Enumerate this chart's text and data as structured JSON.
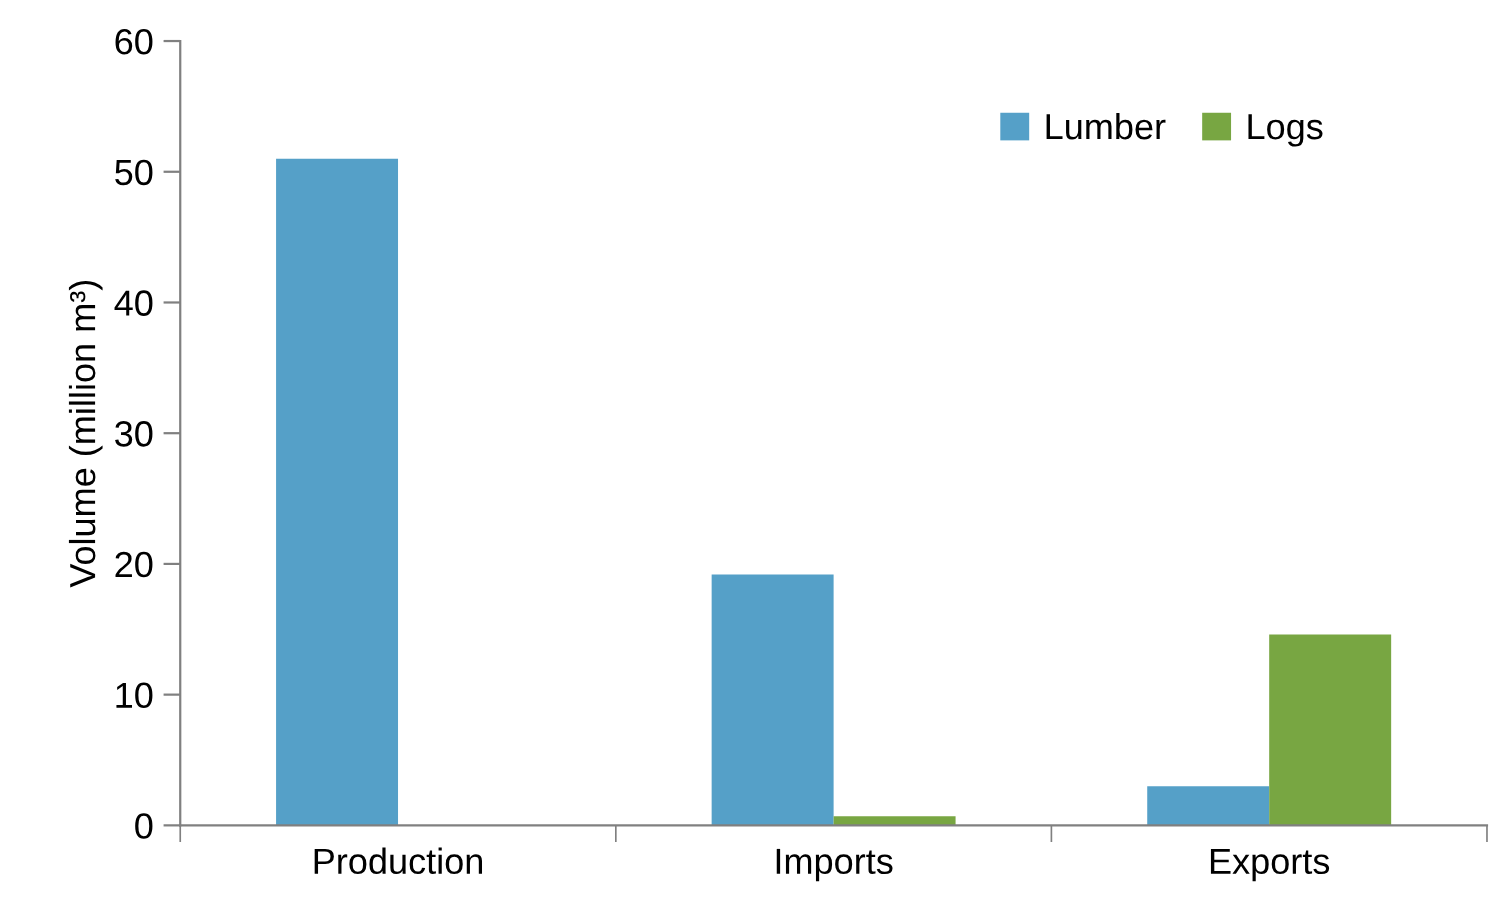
{
  "chart_data": {
    "type": "bar",
    "ylabel": "Volume (million m³)",
    "categories": [
      "Production",
      "Imports",
      "Exports"
    ],
    "series": [
      {
        "name": "Lumber",
        "color": "#55a0c8",
        "values": [
          51.0,
          19.2,
          3.0
        ]
      },
      {
        "name": "Logs",
        "color": "#78a642",
        "values": [
          null,
          0.7,
          14.6
        ]
      }
    ],
    "ylim": [
      0,
      60
    ],
    "yticks": [
      0,
      10,
      20,
      30,
      40,
      50,
      60
    ],
    "grid": false,
    "legend": "top right"
  }
}
